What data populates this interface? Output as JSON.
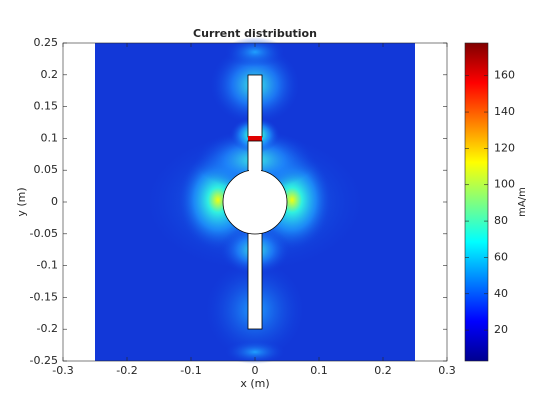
{
  "chart_data": {
    "type": "field",
    "title": "Current distribution",
    "xlabel": "x (m)",
    "ylabel": "y (m)",
    "xlim": [
      -0.3,
      0.3
    ],
    "xticks": [
      -0.3,
      -0.2,
      -0.1,
      0,
      0.1,
      0.2,
      0.3
    ],
    "ylim": [
      -0.25,
      0.25
    ],
    "yticks": [
      -0.25,
      -0.2,
      -0.15,
      -0.1,
      -0.05,
      0,
      0.05,
      0.1,
      0.15,
      0.2,
      0.25
    ],
    "colorbar": {
      "label": "mA/m",
      "clim": [
        3,
        178
      ],
      "ticks": [
        20,
        40,
        60,
        80,
        100,
        120,
        140,
        160
      ]
    }
  }
}
